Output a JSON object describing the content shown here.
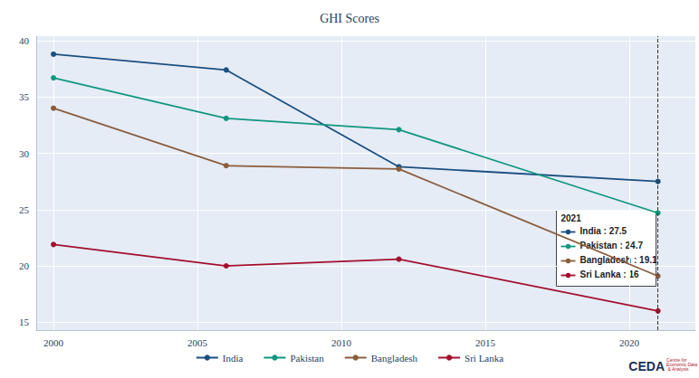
{
  "chart_data": {
    "type": "line",
    "title": "GHI Scores",
    "x": [
      2000,
      2006,
      2012,
      2021
    ],
    "series": [
      {
        "name": "India",
        "color": "#1b4f80",
        "values": [
          38.8,
          37.4,
          28.8,
          27.5
        ]
      },
      {
        "name": "Pakistan",
        "color": "#11977f",
        "values": [
          36.7,
          33.1,
          32.1,
          24.7
        ]
      },
      {
        "name": "Bangladesh",
        "color": "#8b5d3d",
        "values": [
          34.0,
          28.9,
          28.6,
          19.1
        ]
      },
      {
        "name": "Sri Lanka",
        "color": "#a3102e",
        "values": [
          21.9,
          20.0,
          20.6,
          16.0
        ]
      }
    ],
    "xlim": [
      1999.4,
      2022.3
    ],
    "xticks": [
      2000,
      2005,
      2010,
      2015,
      2020
    ],
    "ylim": [
      14.3,
      40.4
    ],
    "yticks": [
      15,
      20,
      25,
      30,
      35,
      40
    ],
    "grid": true,
    "legend": "bottom",
    "marker": "circle",
    "line_style": "solid",
    "annotations": {
      "x": 2021,
      "title": "2021",
      "lines": [
        "India : 27.5",
        "Pakistan : 24.7",
        "Bangladesh : 19.1",
        "Sri Lanka : 16"
      ]
    },
    "logo": "CEDA",
    "logo_subtitle": "Centre for Economic Data & Analysis"
  }
}
